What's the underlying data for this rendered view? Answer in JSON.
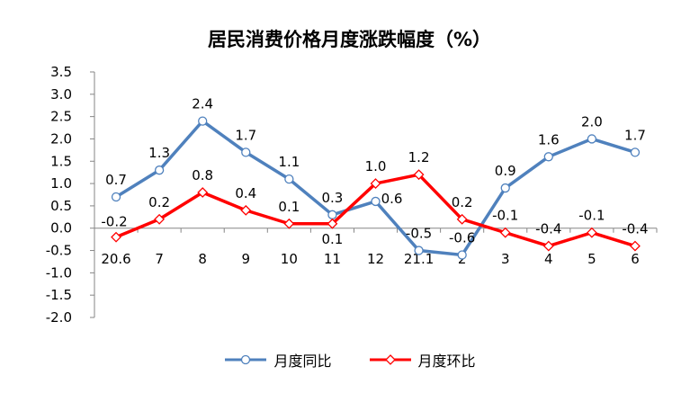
{
  "chart_data": {
    "type": "line",
    "title": "居民消费价格月度涨跌幅度（%）",
    "categories": [
      "20.6",
      "7",
      "8",
      "9",
      "10",
      "11",
      "12",
      "21.1",
      "2",
      "3",
      "4",
      "5",
      "6"
    ],
    "ylim": [
      -2.0,
      3.5
    ],
    "yticks": [
      "3.5",
      "3.0",
      "2.5",
      "2.0",
      "1.5",
      "1.0",
      "0.5",
      "0.0",
      "-0.5",
      "-1.0",
      "-1.5",
      "-2.0"
    ],
    "grid": false,
    "legend_position": "bottom",
    "series": [
      {
        "name": "月度同比",
        "color": "#4F81BD",
        "marker": "circle",
        "values": [
          0.7,
          1.3,
          2.4,
          1.7,
          1.1,
          0.3,
          0.6,
          -0.5,
          -0.6,
          0.9,
          1.6,
          2.0,
          1.7
        ],
        "labels": [
          "0.7",
          "1.3",
          "2.4",
          "1.7",
          "1.1",
          "0.3",
          "0.6",
          "-0.5",
          "-0.6",
          "0.9",
          "1.6",
          "2.0",
          "1.7"
        ]
      },
      {
        "name": "月度环比",
        "color": "#FF0000",
        "marker": "diamond",
        "values": [
          -0.2,
          0.2,
          0.8,
          0.4,
          0.1,
          0.1,
          1.0,
          1.2,
          0.2,
          -0.1,
          -0.4,
          -0.1,
          -0.4
        ],
        "labels": [
          "-0.2",
          "0.2",
          "0.8",
          "0.4",
          "0.1",
          "0.1",
          "1.0",
          "1.2",
          "0.2",
          "-0.1",
          "-0.4",
          "-0.1",
          "-0.4"
        ]
      }
    ]
  }
}
